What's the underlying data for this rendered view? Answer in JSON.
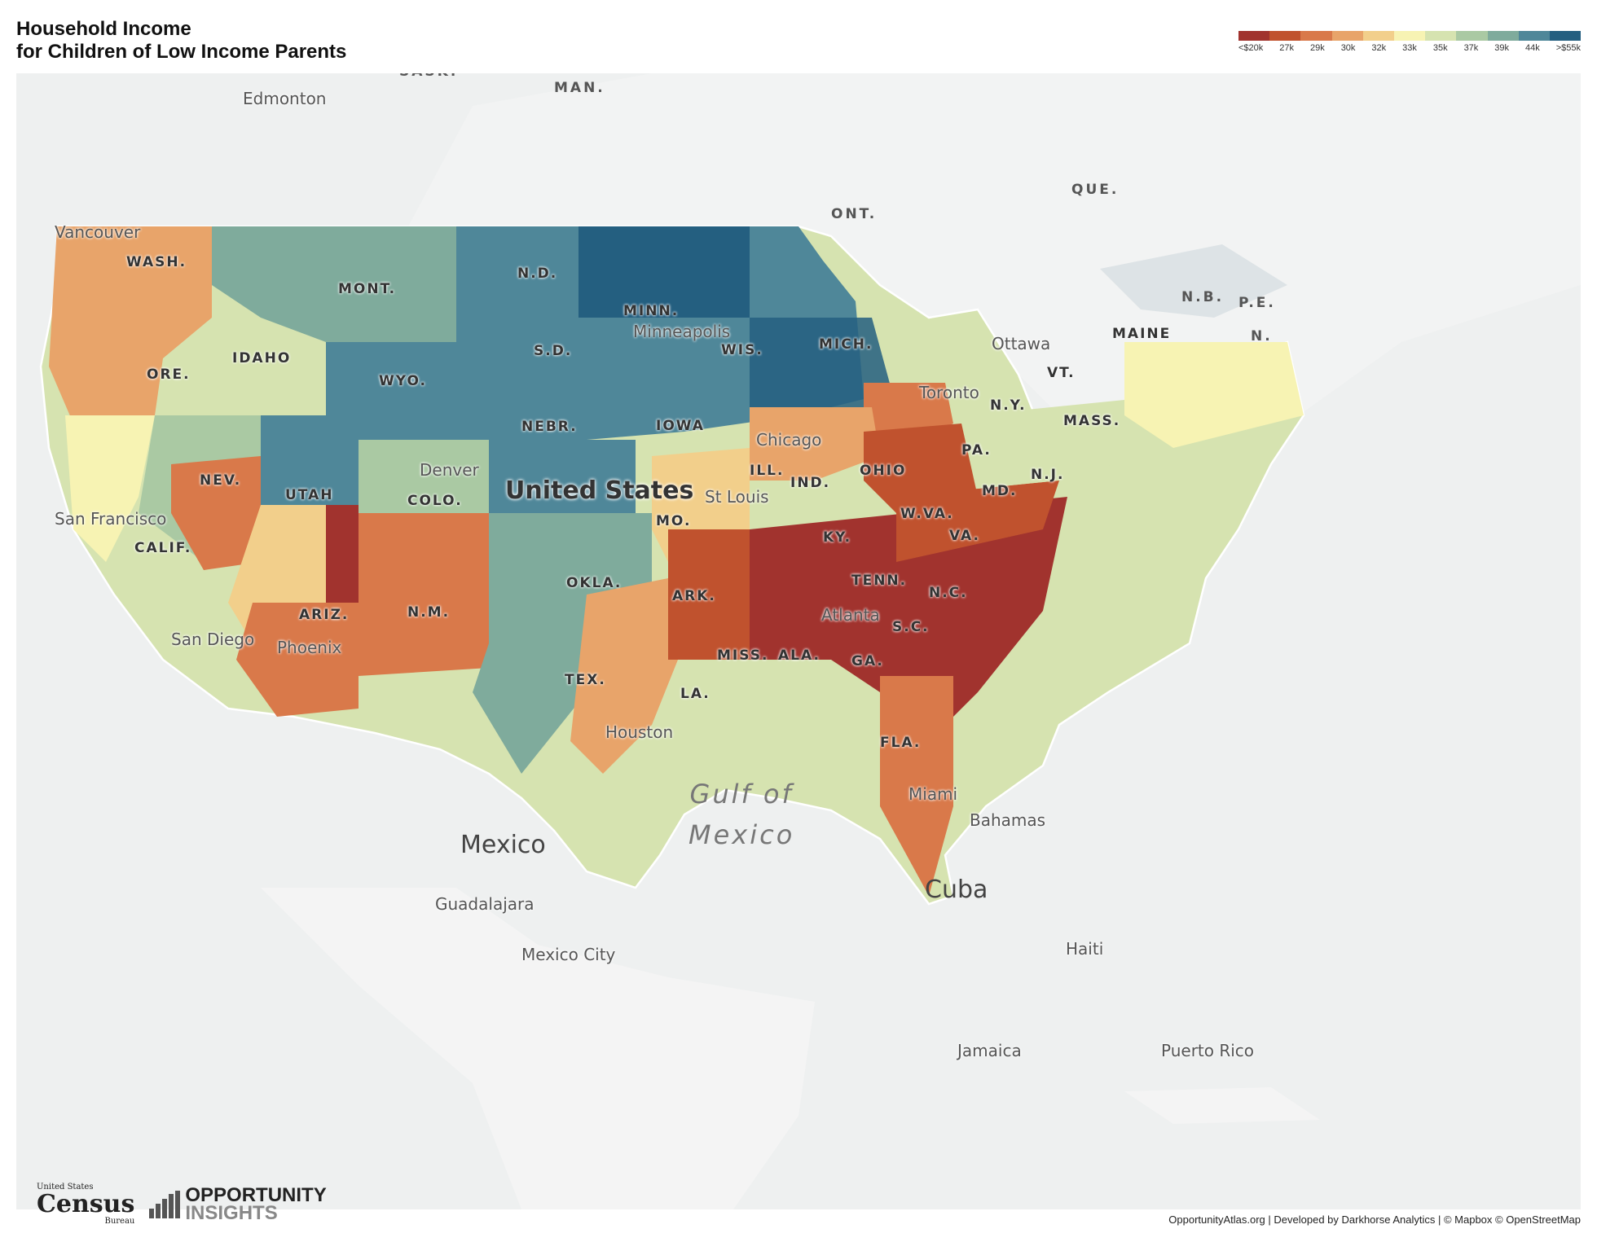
{
  "title": {
    "line1": "Household Income",
    "line2": "for Children of Low Income Parents"
  },
  "legend": {
    "colors": [
      "#a1332e",
      "#c0522e",
      "#d9794a",
      "#e8a46a",
      "#f2cf8b",
      "#f7f3b3",
      "#d6e3b0",
      "#aac9a3",
      "#7fab9c",
      "#4f8799",
      "#245f80"
    ],
    "ticks": [
      "<$20k",
      "27k",
      "29k",
      "30k",
      "32k",
      "33k",
      "35k",
      "37k",
      "39k",
      "44k",
      ">$55k"
    ]
  },
  "map": {
    "country_label": "United States",
    "state_labels": [
      "WASH.",
      "ORE.",
      "CALIF.",
      "NEV.",
      "IDAHO",
      "MONT.",
      "WYO.",
      "UTAH",
      "ARIZ.",
      "COLO.",
      "N.M.",
      "N.D.",
      "S.D.",
      "NEBR.",
      "OKLA.",
      "TEX.",
      "MINN.",
      "IOWA",
      "MO.",
      "ARK.",
      "LA.",
      "WIS.",
      "ILL.",
      "MICH.",
      "IND.",
      "OHIO",
      "KY.",
      "TENN.",
      "MISS.",
      "ALA.",
      "GA.",
      "FLA.",
      "S.C.",
      "N.C.",
      "VA.",
      "W.VA.",
      "MD.",
      "N.J.",
      "PA.",
      "N.Y.",
      "VT.",
      "MASS.",
      "MAINE"
    ],
    "city_labels": [
      "Vancouver",
      "Edmonton",
      "San Francisco",
      "San Diego",
      "Phoenix",
      "Denver",
      "Minneapolis",
      "Chicago",
      "St Louis",
      "Atlanta",
      "Houston",
      "Miami",
      "Ottawa",
      "Toronto",
      "Bahamas",
      "Guadalajara",
      "Mexico City",
      "Haiti",
      "Jamaica",
      "Puerto Rico"
    ],
    "province_labels": [
      "SASK.",
      "MAN.",
      "ONT.",
      "QUE.",
      "N.B.",
      "P.E.",
      "N."
    ],
    "countries": [
      "Mexico",
      "Cuba"
    ],
    "gulf": {
      "line1": "Gulf of",
      "line2": "Mexico"
    }
  },
  "footer": {
    "census_small": "United States",
    "census_main": "Census",
    "census_bureau": "Bureau",
    "oi_line1": "OPPORTUNITY",
    "oi_line2": "INSIGHTS",
    "attribution": "OpportunityAtlas.org | Developed by Darkhorse Analytics | © Mapbox © OpenStreetMap"
  }
}
